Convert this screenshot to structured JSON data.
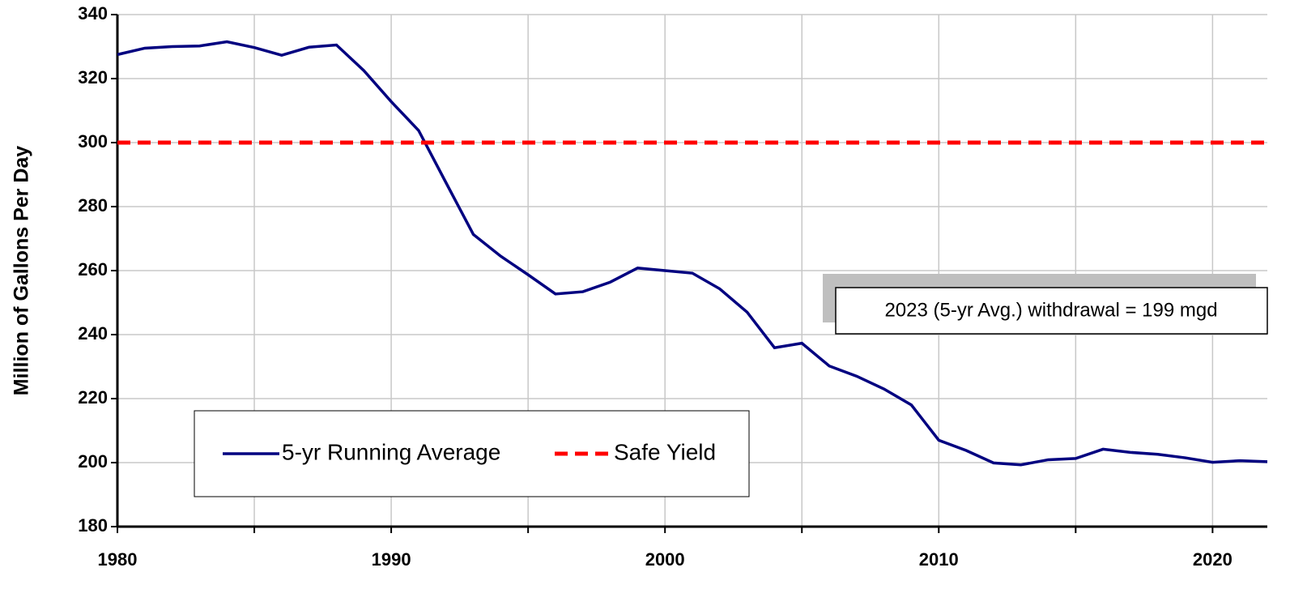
{
  "chart_data": {
    "type": "line",
    "ylabel": "Million of Gallons Per Day",
    "x": [
      1980,
      1981,
      1982,
      1983,
      1984,
      1985,
      1986,
      1987,
      1988,
      1989,
      1990,
      1991,
      1992,
      1993,
      1994,
      1995,
      1996,
      1997,
      1998,
      1999,
      2000,
      2001,
      2002,
      2003,
      2004,
      2005,
      2006,
      2007,
      2008,
      2009,
      2010,
      2011,
      2012,
      2013,
      2014,
      2015,
      2016,
      2017,
      2018,
      2019,
      2020,
      2021,
      2022
    ],
    "series": [
      {
        "name": "5-yr Running Average",
        "color": "#000080",
        "dash": false,
        "values": [
          327.5,
          329.5,
          330,
          330.2,
          331.5,
          329.7,
          327.3,
          329.8,
          330.5,
          322.5,
          312.8,
          303.8,
          287.5,
          271.3,
          264.5,
          258.7,
          252.7,
          253.4,
          256.4,
          260.8,
          260,
          259.2,
          254.3,
          247,
          235.9,
          237.3,
          230.2,
          227,
          223,
          218,
          207,
          203.8,
          199.9,
          199.3,
          200.9,
          201.3,
          204.2,
          203.2,
          202.6,
          201.5,
          200.1,
          200.6,
          200.3
        ]
      },
      {
        "name": "Safe Yield",
        "color": "#ff0000",
        "dash": true,
        "values": [
          300,
          300,
          300,
          300,
          300,
          300,
          300,
          300,
          300,
          300,
          300,
          300,
          300,
          300,
          300,
          300,
          300,
          300,
          300,
          300,
          300,
          300,
          300,
          300,
          300,
          300,
          300,
          300,
          300,
          300,
          300,
          300,
          300,
          300,
          300,
          300,
          300,
          300,
          300,
          300,
          300,
          300,
          300
        ]
      }
    ],
    "xlim": [
      1980,
      2022
    ],
    "xticks": [
      1980,
      1990,
      2000,
      2010,
      2020
    ],
    "x_minor_ticks": [
      1985,
      1995,
      2005,
      2015
    ],
    "ylim": [
      180,
      340
    ],
    "yticks": [
      180,
      200,
      220,
      240,
      260,
      280,
      300,
      320,
      340
    ],
    "grid": true,
    "annotation": "2023 (5-yr Avg.) withdrawal = 199 mgd"
  }
}
